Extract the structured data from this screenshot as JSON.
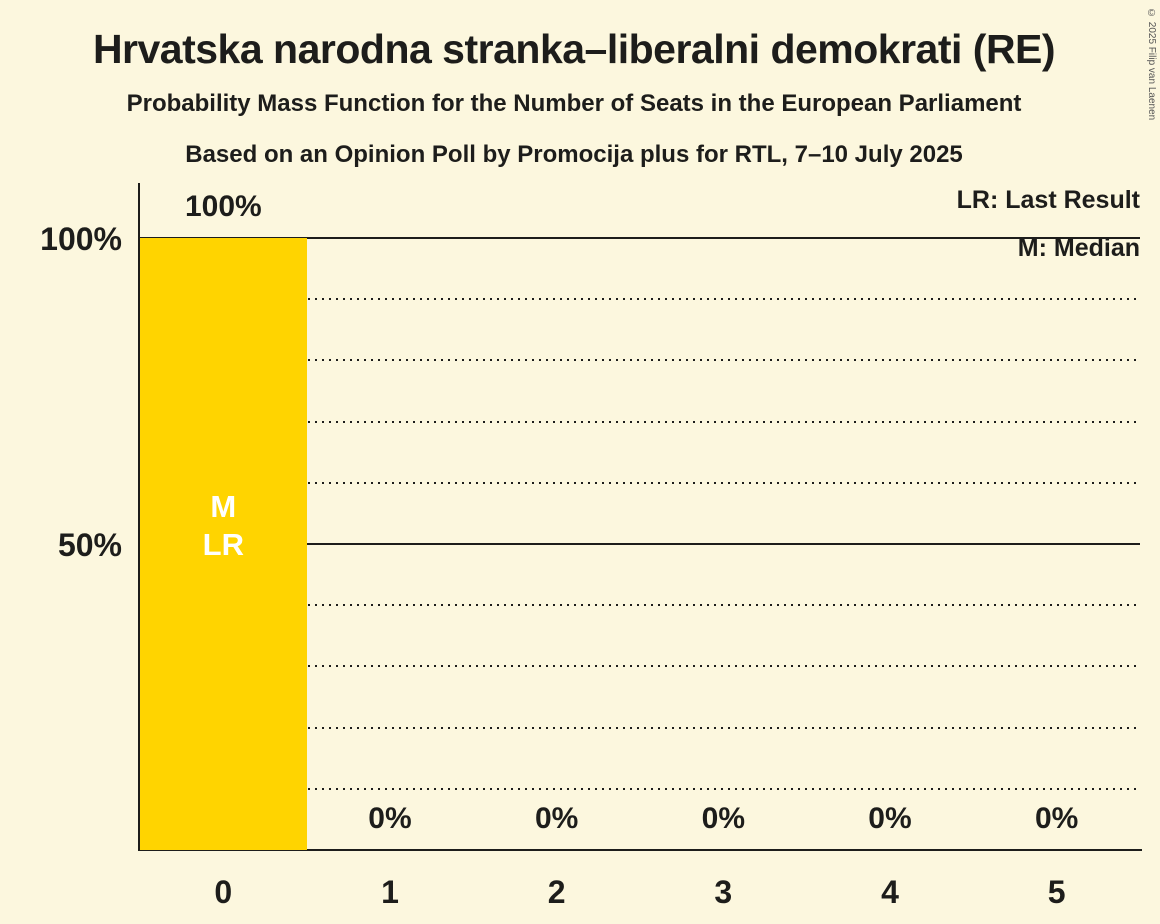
{
  "title": "Hrvatska narodna stranka–liberalni demokrati (RE)",
  "subtitle1": "Probability Mass Function for the Number of Seats in the European Parliament",
  "subtitle2": "Based on an Opinion Poll by Promocija plus for RTL, 7–10 July 2025",
  "copyright": "© 2025 Filip van Laenen",
  "legend": {
    "lr": "LR: Last Result",
    "m": "M: Median"
  },
  "colors": {
    "background": "#FCF7DE",
    "bar": "#FFD400",
    "text": "#1D1D1B",
    "bar_label": "#FFFFFF",
    "grid": "#1D1D1B"
  },
  "chart_data": {
    "type": "bar",
    "categories": [
      "0",
      "1",
      "2",
      "3",
      "4",
      "5"
    ],
    "values": [
      100,
      0,
      0,
      0,
      0,
      0
    ],
    "value_labels": [
      "100%",
      "0%",
      "0%",
      "0%",
      "0%",
      "0%"
    ],
    "xlabel": "",
    "ylabel": "",
    "ylim": [
      0,
      100
    ],
    "yticks": [
      {
        "value": 100,
        "label": "100%"
      },
      {
        "value": 50,
        "label": "50%"
      }
    ],
    "gridlines": {
      "dotted": [
        10,
        20,
        30,
        40,
        60,
        70,
        80,
        90
      ],
      "solid": [
        50,
        100
      ]
    },
    "grid": true,
    "legend_position": "top-right",
    "annotations": [
      {
        "index": 0,
        "lines": [
          "M",
          "LR"
        ]
      }
    ],
    "median_seats": 0,
    "last_result_seats": 0
  }
}
